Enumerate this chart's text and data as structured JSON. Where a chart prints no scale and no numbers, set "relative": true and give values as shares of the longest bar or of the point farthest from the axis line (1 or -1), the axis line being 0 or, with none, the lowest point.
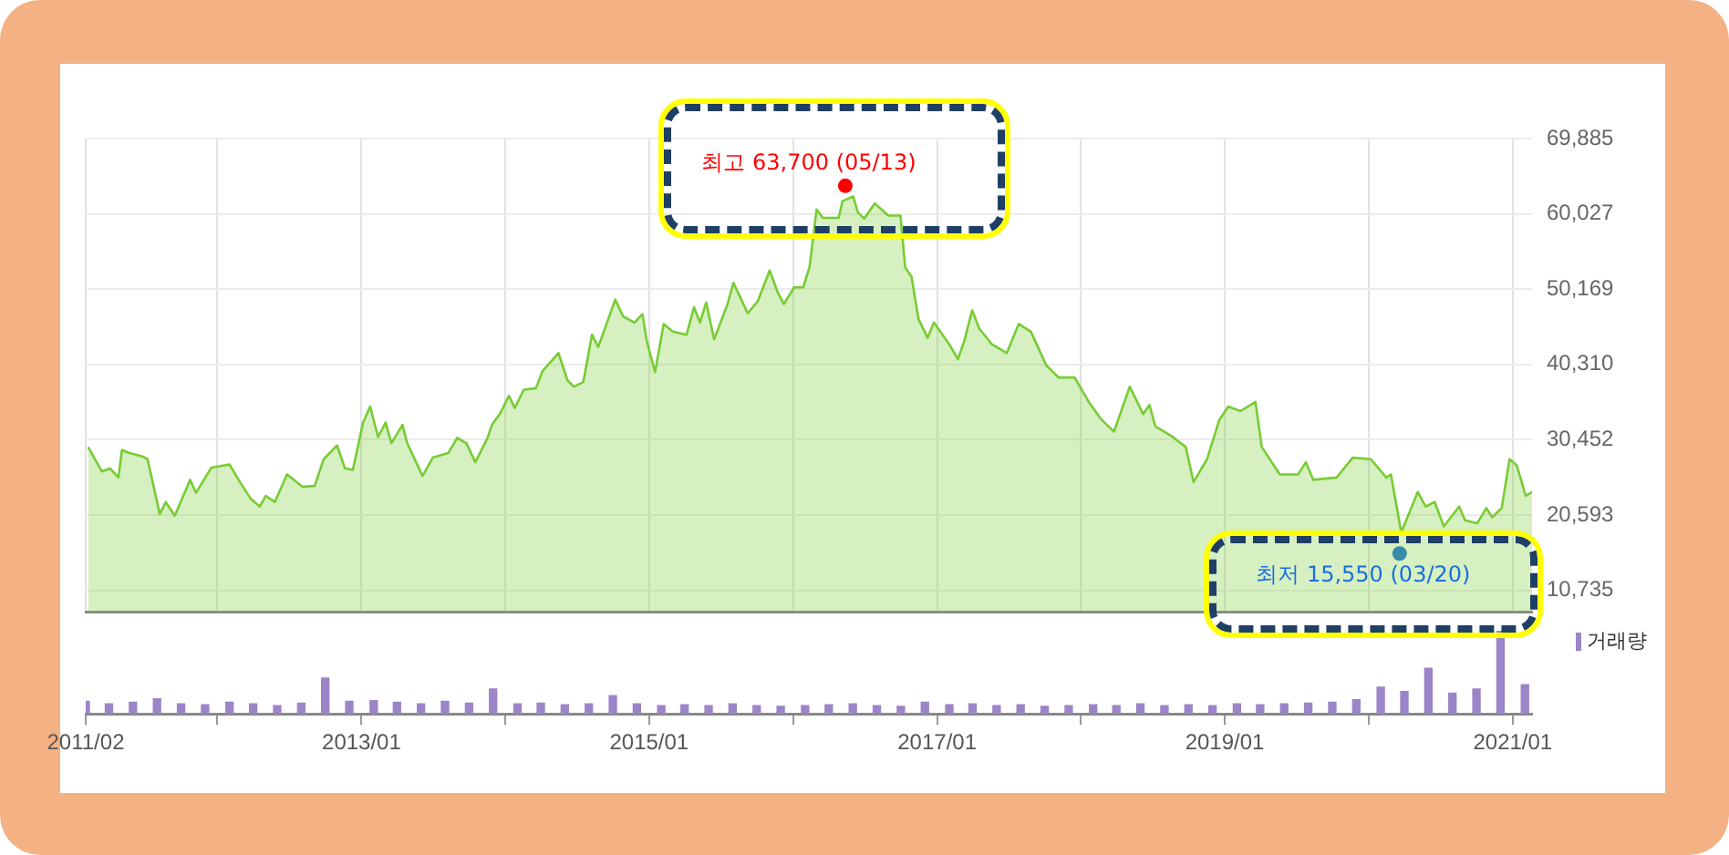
{
  "chart_data": [
    {
      "type": "area",
      "x": [
        "2011-02-07",
        "2011-03-14",
        "2011-04-04",
        "2011-04-25",
        "2011-05-04",
        "2011-05-23",
        "2011-06-23",
        "2011-07-08",
        "2011-08-08",
        "2011-08-23",
        "2011-09-15",
        "2011-10-24",
        "2011-11-08",
        "2011-12-17",
        "2012-02-01",
        "2012-02-24",
        "2012-03-26",
        "2012-04-18",
        "2012-05-03",
        "2012-05-26",
        "2012-06-26",
        "2012-08-04",
        "2012-09-04",
        "2012-09-27",
        "2012-10-31",
        "2012-11-20",
        "2012-12-10",
        "2013-01-05",
        "2013-01-23",
        "2013-02-12",
        "2013-03-03",
        "2013-03-18",
        "2013-04-15",
        "2013-04-27",
        "2013-06-05",
        "2013-07-01",
        "2013-08-09",
        "2013-09-01",
        "2013-09-24",
        "2013-10-17",
        "2013-11-17",
        "2013-11-28",
        "2013-12-18",
        "2014-01-10",
        "2014-01-25",
        "2014-02-17",
        "2014-03-20",
        "2014-04-05",
        "2014-05-16",
        "2014-06-08",
        "2014-06-24",
        "2014-07-18",
        "2014-08-09",
        "2014-08-25",
        "2014-10-07",
        "2014-10-27",
        "2014-11-25",
        "2014-12-15",
        "2014-12-26",
        "2015-01-16",
        "2015-02-07",
        "2015-03-02",
        "2015-04-06",
        "2015-04-25",
        "2015-05-10",
        "2015-05-26",
        "2015-06-15",
        "2015-07-19",
        "2015-08-03",
        "2015-08-23",
        "2015-09-08",
        "2015-10-04",
        "2015-11-03",
        "2015-11-23",
        "2015-12-09",
        "2016-01-04",
        "2016-01-27",
        "2016-02-12",
        "2016-03-01",
        "2016-03-17",
        "2016-04-26",
        "2016-05-06",
        "2016-06-02",
        "2016-06-14",
        "2016-06-30",
        "2016-07-27",
        "2016-08-30",
        "2016-09-30",
        "2016-10-12",
        "2016-10-28",
        "2016-11-15",
        "2016-12-08",
        "2016-12-24",
        "2017-01-31",
        "2017-02-23",
        "2017-03-11",
        "2017-03-31",
        "2017-04-18",
        "2017-05-19",
        "2017-06-27",
        "2017-07-27",
        "2017-08-27",
        "2017-10-05",
        "2017-11-05",
        "2017-12-16",
        "2018-01-21",
        "2018-02-20",
        "2018-03-26",
        "2018-05-05",
        "2018-06-08",
        "2018-06-24",
        "2018-07-09",
        "2018-08-17",
        "2018-09-24",
        "2018-10-14",
        "2018-11-17",
        "2018-12-18",
        "2019-01-10",
        "2019-02-10",
        "2019-03-20",
        "2019-04-05",
        "2019-05-21",
        "2019-07-06",
        "2019-07-26",
        "2019-08-14",
        "2019-10-12",
        "2019-11-22",
        "2020-01-07",
        "2020-02-15",
        "2020-02-27",
        "2020-03-24",
        "2020-05-05",
        "2020-05-25",
        "2020-06-17",
        "2020-07-10",
        "2020-08-18",
        "2020-09-02",
        "2020-10-03",
        "2020-10-26",
        "2020-11-10",
        "2020-12-04",
        "2020-12-24",
        "2021-01-11",
        "2021-02-03",
        "2021-02-19"
      ],
      "xlim": [
        "2011-02-01",
        "2021-02-19"
      ],
      "xticks": [
        {
          "value": "2011-02-01",
          "label": null
        },
        {
          "value": "2012-01-01",
          "label": null
        },
        {
          "value": "2013-01-01",
          "label": null
        },
        {
          "value": "2014-01-01",
          "label": null
        },
        {
          "value": "2015-01-01",
          "label": null
        },
        {
          "value": "2016-01-01",
          "label": null
        },
        {
          "value": "2017-01-01",
          "label": null
        },
        {
          "value": "2018-01-01",
          "label": null
        },
        {
          "value": "2019-01-01",
          "label": null
        },
        {
          "value": "2020-01-01",
          "label": null
        },
        {
          "value": "2021-01-01",
          "label": null
        }
      ],
      "ylim": [
        7870,
        69885
      ],
      "yticks": [
        {
          "value": 10735,
          "label": "10,735"
        },
        {
          "value": 20593,
          "label": "20,593"
        },
        {
          "value": 30452,
          "label": "30,452"
        },
        {
          "value": 40310,
          "label": "40,310"
        },
        {
          "value": 50169,
          "label": "50,169"
        },
        {
          "value": 60027,
          "label": "60,027"
        },
        {
          "value": 69885,
          "label": "69,885"
        }
      ],
      "series": [
        {
          "color": "#77cc33",
          "values": [
            29500,
            26300,
            26700,
            25500,
            29100,
            28700,
            28300,
            27900,
            20700,
            22300,
            20500,
            25200,
            23500,
            26800,
            27200,
            25200,
            22700,
            21700,
            23100,
            22300,
            25900,
            24300,
            24400,
            27900,
            29700,
            26700,
            26500,
            32700,
            34800,
            30800,
            32700,
            30000,
            32400,
            30000,
            25700,
            28100,
            28700,
            30700,
            30000,
            27500,
            30700,
            32400,
            33800,
            36200,
            34600,
            37000,
            37200,
            39400,
            41800,
            38200,
            37400,
            38000,
            44200,
            42600,
            48800,
            46600,
            45800,
            46900,
            43400,
            39300,
            45600,
            44600,
            44200,
            47800,
            45800,
            48400,
            43600,
            48200,
            51000,
            48800,
            47000,
            48600,
            52600,
            49800,
            48200,
            50400,
            50400,
            53000,
            60600,
            59500,
            59500,
            61700,
            62300,
            60200,
            59400,
            61400,
            59800,
            59800,
            53000,
            51800,
            46200,
            43800,
            45800,
            43000,
            41000,
            43400,
            47400,
            45000,
            43000,
            41800,
            45600,
            44600,
            40200,
            38600,
            38600,
            35400,
            33200,
            31500,
            37400,
            33800,
            35000,
            32200,
            31000,
            29500,
            24900,
            27900,
            33000,
            34800,
            34200,
            35400,
            29500,
            25900,
            25900,
            27500,
            25200,
            25500,
            28100,
            27900,
            25500,
            25900,
            18300,
            23600,
            21700,
            22300,
            19100,
            21700,
            19900,
            19500,
            21500,
            20300,
            21500,
            27900,
            27100,
            23100,
            23600
          ]
        },
        {
          "type": "scatter",
          "x": [
            "2016-05-13",
            "2020-03-20"
          ],
          "values": [
            63700,
            15550
          ],
          "colors": [
            "#ff0000",
            "#1a6fe0"
          ]
        }
      ],
      "grid": true,
      "tick_labels": "y",
      "annotations": [
        {
          "text": "최고 63,700 (05/13)",
          "x": "2016-05-13",
          "y": 63700
        },
        {
          "text": "최저 15,550 (03/20)",
          "x": "2020-03-20",
          "y": 15550
        }
      ]
    },
    {
      "type": "bar",
      "relative": true,
      "legend": "top right",
      "tick_labels": "x",
      "x": [
        "2011-02",
        "2011-04",
        "2011-06",
        "2011-08",
        "2011-10",
        "2011-12",
        "2012-02",
        "2012-04",
        "2012-06",
        "2012-08",
        "2012-10",
        "2012-12",
        "2013-02",
        "2013-04",
        "2013-06",
        "2013-08",
        "2013-10",
        "2013-12",
        "2014-02",
        "2014-04",
        "2014-06",
        "2014-08",
        "2014-10",
        "2014-12",
        "2015-02",
        "2015-04",
        "2015-06",
        "2015-08",
        "2015-10",
        "2015-12",
        "2016-02",
        "2016-04",
        "2016-06",
        "2016-08",
        "2016-10",
        "2016-12",
        "2017-02",
        "2017-04",
        "2017-06",
        "2017-08",
        "2017-10",
        "2017-12",
        "2018-02",
        "2018-04",
        "2018-06",
        "2018-08",
        "2018-10",
        "2018-12",
        "2019-02",
        "2019-04",
        "2019-06",
        "2019-08",
        "2019-10",
        "2019-12",
        "2020-02",
        "2020-04",
        "2020-06",
        "2020-08",
        "2020-10",
        "2020-12",
        "2021-02"
      ],
      "series": [
        {
          "name": "거래량",
          "color": "#9b84c8",
          "values": [
            0.15,
            0.12,
            0.14,
            0.18,
            0.12,
            0.11,
            0.14,
            0.12,
            0.1,
            0.13,
            0.43,
            0.15,
            0.16,
            0.14,
            0.12,
            0.15,
            0.13,
            0.3,
            0.12,
            0.13,
            0.11,
            0.12,
            0.22,
            0.12,
            0.1,
            0.11,
            0.1,
            0.12,
            0.1,
            0.09,
            0.1,
            0.11,
            0.12,
            0.1,
            0.09,
            0.14,
            0.11,
            0.12,
            0.1,
            0.11,
            0.09,
            0.1,
            0.11,
            0.1,
            0.12,
            0.1,
            0.11,
            0.1,
            0.12,
            0.11,
            0.12,
            0.13,
            0.14,
            0.17,
            0.32,
            0.27,
            0.55,
            0.25,
            0.3,
            1,
            0.35
          ]
        }
      ],
      "xlim": [
        "2011-02-01",
        "2021-02-19"
      ],
      "xticks": [
        {
          "value": "2011-02-01",
          "label": "2011/02"
        },
        {
          "value": "2012-01-01",
          "label": null
        },
        {
          "value": "2013-01-01",
          "label": "2013/01"
        },
        {
          "value": "2014-01-01",
          "label": null
        },
        {
          "value": "2015-01-01",
          "label": "2015/01"
        },
        {
          "value": "2016-01-01",
          "label": null
        },
        {
          "value": "2017-01-01",
          "label": "2017/01"
        },
        {
          "value": "2018-01-01",
          "label": null
        },
        {
          "value": "2019-01-01",
          "label": "2019/01"
        },
        {
          "value": "2020-01-01",
          "label": null
        },
        {
          "value": "2021-01-01",
          "label": "2021/01"
        }
      ]
    }
  ]
}
